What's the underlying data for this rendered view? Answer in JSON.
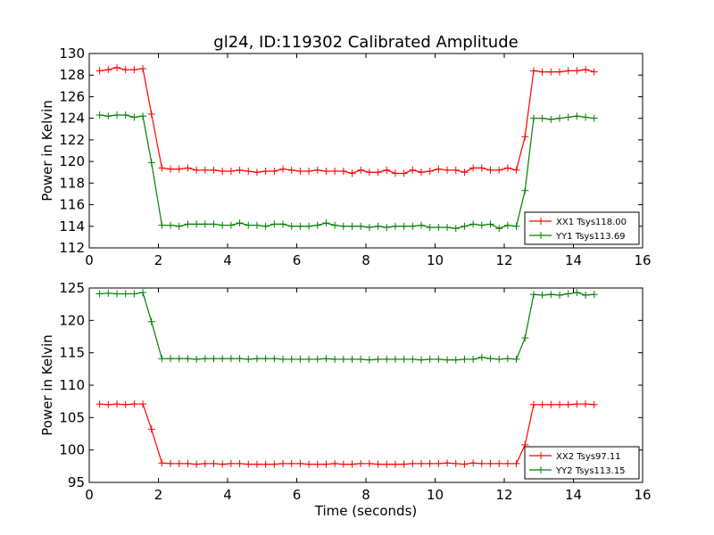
{
  "title": "gl24, ID:119302 Calibrated Amplitude",
  "xlabel": "Time (seconds)",
  "colors": {
    "red": "#ff0000",
    "green": "#008000"
  },
  "chart_data": [
    {
      "type": "line",
      "ylabel": "Power in Kelvin",
      "xlim": [
        0,
        16
      ],
      "ylim": [
        112,
        130
      ],
      "xticks": [
        0,
        2,
        4,
        6,
        8,
        10,
        12,
        14,
        16
      ],
      "yticks": [
        112,
        114,
        116,
        118,
        120,
        122,
        124,
        126,
        128,
        130
      ],
      "legend": "lower-right",
      "x": [
        0.3,
        0.55,
        0.8,
        1.05,
        1.3,
        1.55,
        1.8,
        2.1,
        2.35,
        2.6,
        2.85,
        3.1,
        3.35,
        3.6,
        3.85,
        4.1,
        4.35,
        4.6,
        4.85,
        5.1,
        5.35,
        5.6,
        5.85,
        6.1,
        6.35,
        6.6,
        6.85,
        7.1,
        7.35,
        7.6,
        7.85,
        8.1,
        8.35,
        8.6,
        8.85,
        9.1,
        9.35,
        9.6,
        9.85,
        10.1,
        10.35,
        10.6,
        10.85,
        11.1,
        11.35,
        11.6,
        11.85,
        12.1,
        12.35,
        12.6,
        12.85,
        13.1,
        13.35,
        13.6,
        13.85,
        14.1,
        14.35,
        14.6
      ],
      "series": [
        {
          "name": "XX1 Tsys118.00",
          "color": "#ff0000",
          "values": [
            128.4,
            128.5,
            128.7,
            128.5,
            128.5,
            128.6,
            124.4,
            119.4,
            119.3,
            119.3,
            119.4,
            119.2,
            119.2,
            119.2,
            119.1,
            119.1,
            119.2,
            119.1,
            119.0,
            119.1,
            119.1,
            119.3,
            119.2,
            119.1,
            119.1,
            119.2,
            119.1,
            119.1,
            119.1,
            118.9,
            119.2,
            119.0,
            119.0,
            119.2,
            118.9,
            118.9,
            119.2,
            119.0,
            119.1,
            119.3,
            119.2,
            119.2,
            119.0,
            119.4,
            119.4,
            119.2,
            119.2,
            119.4,
            119.2,
            122.3,
            128.4,
            128.3,
            128.3,
            128.3,
            128.4,
            128.4,
            128.5,
            128.3
          ]
        },
        {
          "name": "YY1 Tsys113.69",
          "color": "#008000",
          "values": [
            124.3,
            124.2,
            124.3,
            124.3,
            124.1,
            124.2,
            119.9,
            114.1,
            114.1,
            114.0,
            114.2,
            114.2,
            114.2,
            114.2,
            114.1,
            114.1,
            114.3,
            114.1,
            114.1,
            114.0,
            114.2,
            114.2,
            114.0,
            114.0,
            114.0,
            114.1,
            114.3,
            114.1,
            114.0,
            114.0,
            114.0,
            113.9,
            114.0,
            113.9,
            114.0,
            114.0,
            114.0,
            114.1,
            113.9,
            113.9,
            113.9,
            113.8,
            114.0,
            114.2,
            114.1,
            114.2,
            113.8,
            114.1,
            114.0,
            117.3,
            124.0,
            124.0,
            123.9,
            124.0,
            124.1,
            124.2,
            124.1,
            124.0
          ]
        }
      ]
    },
    {
      "type": "line",
      "ylabel": "Power in Kelvin",
      "xlabel": "Time (seconds)",
      "xlim": [
        0,
        16
      ],
      "ylim": [
        95,
        125
      ],
      "xticks": [
        0,
        2,
        4,
        6,
        8,
        10,
        12,
        14,
        16
      ],
      "yticks": [
        95,
        100,
        105,
        110,
        115,
        120,
        125
      ],
      "legend": "lower-right",
      "x": [
        0.3,
        0.55,
        0.8,
        1.05,
        1.3,
        1.55,
        1.8,
        2.1,
        2.35,
        2.6,
        2.85,
        3.1,
        3.35,
        3.6,
        3.85,
        4.1,
        4.35,
        4.6,
        4.85,
        5.1,
        5.35,
        5.6,
        5.85,
        6.1,
        6.35,
        6.6,
        6.85,
        7.1,
        7.35,
        7.6,
        7.85,
        8.1,
        8.35,
        8.6,
        8.85,
        9.1,
        9.35,
        9.6,
        9.85,
        10.1,
        10.35,
        10.6,
        10.85,
        11.1,
        11.35,
        11.6,
        11.85,
        12.1,
        12.35,
        12.6,
        12.85,
        13.1,
        13.35,
        13.6,
        13.85,
        14.1,
        14.35,
        14.6
      ],
      "series": [
        {
          "name": "XX2 Tsys97.11",
          "color": "#ff0000",
          "values": [
            107.1,
            107.0,
            107.1,
            107.0,
            107.1,
            107.1,
            103.2,
            98.0,
            97.9,
            97.9,
            97.9,
            97.8,
            97.9,
            97.9,
            97.8,
            97.9,
            97.9,
            97.8,
            97.8,
            97.8,
            97.8,
            97.9,
            97.9,
            97.9,
            97.8,
            97.8,
            97.8,
            97.9,
            97.8,
            97.8,
            97.9,
            97.9,
            97.8,
            97.8,
            97.8,
            97.8,
            97.9,
            97.9,
            97.9,
            97.9,
            98.0,
            97.9,
            97.8,
            98.0,
            97.9,
            97.9,
            97.9,
            97.9,
            97.9,
            100.8,
            107.0,
            107.0,
            107.0,
            107.0,
            107.0,
            107.1,
            107.1,
            107.0
          ]
        },
        {
          "name": "YY2 Tsys113.15",
          "color": "#008000",
          "values": [
            124.1,
            124.2,
            124.1,
            124.1,
            124.1,
            124.3,
            119.8,
            114.1,
            114.1,
            114.1,
            114.1,
            114.0,
            114.1,
            114.1,
            114.1,
            114.1,
            114.1,
            114.0,
            114.1,
            114.1,
            114.1,
            114.0,
            114.0,
            114.0,
            114.0,
            114.0,
            114.1,
            114.0,
            114.0,
            114.0,
            114.0,
            113.9,
            114.0,
            114.0,
            114.0,
            114.0,
            114.0,
            113.9,
            114.0,
            114.0,
            113.9,
            113.9,
            114.0,
            114.0,
            114.3,
            114.1,
            114.0,
            114.1,
            114.0,
            117.3,
            124.0,
            123.9,
            124.0,
            123.9,
            124.1,
            124.3,
            123.9,
            124.0
          ]
        }
      ]
    }
  ]
}
